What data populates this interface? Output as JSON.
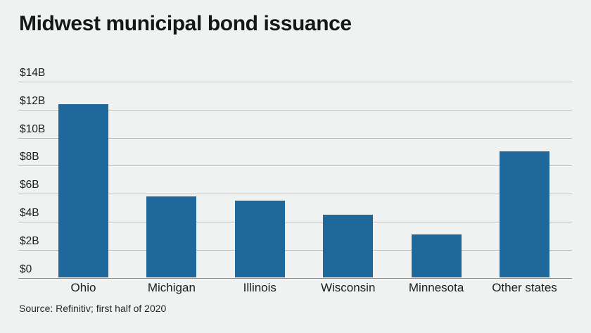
{
  "title": "Midwest municipal bond issuance",
  "source": "Source: Refinitiv; first half of 2020",
  "colors": {
    "background": "#f0f2f1",
    "bar": "#1f689b",
    "gridline": "#b4b8b7",
    "axis_line": "#8e9392",
    "text": "#1c1d1e"
  },
  "chart_data": {
    "type": "bar",
    "title": "Midwest municipal bond issuance",
    "categories": [
      "Ohio",
      "Michigan",
      "Illinois",
      "Wisconsin",
      "Minnesota",
      "Other states"
    ],
    "values": [
      12.4,
      5.8,
      5.5,
      4.5,
      3.1,
      9.0
    ],
    "xlabel": "",
    "ylabel": "",
    "ylim": [
      0,
      14
    ],
    "ytick_step": 2,
    "ytick_labels": [
      "$0",
      "$2B",
      "$4B",
      "$6B",
      "$8B",
      "$10B",
      "$12B",
      "$14B"
    ],
    "grid": true,
    "legend": false,
    "source": "Source: Refinitiv; first half of 2020"
  }
}
